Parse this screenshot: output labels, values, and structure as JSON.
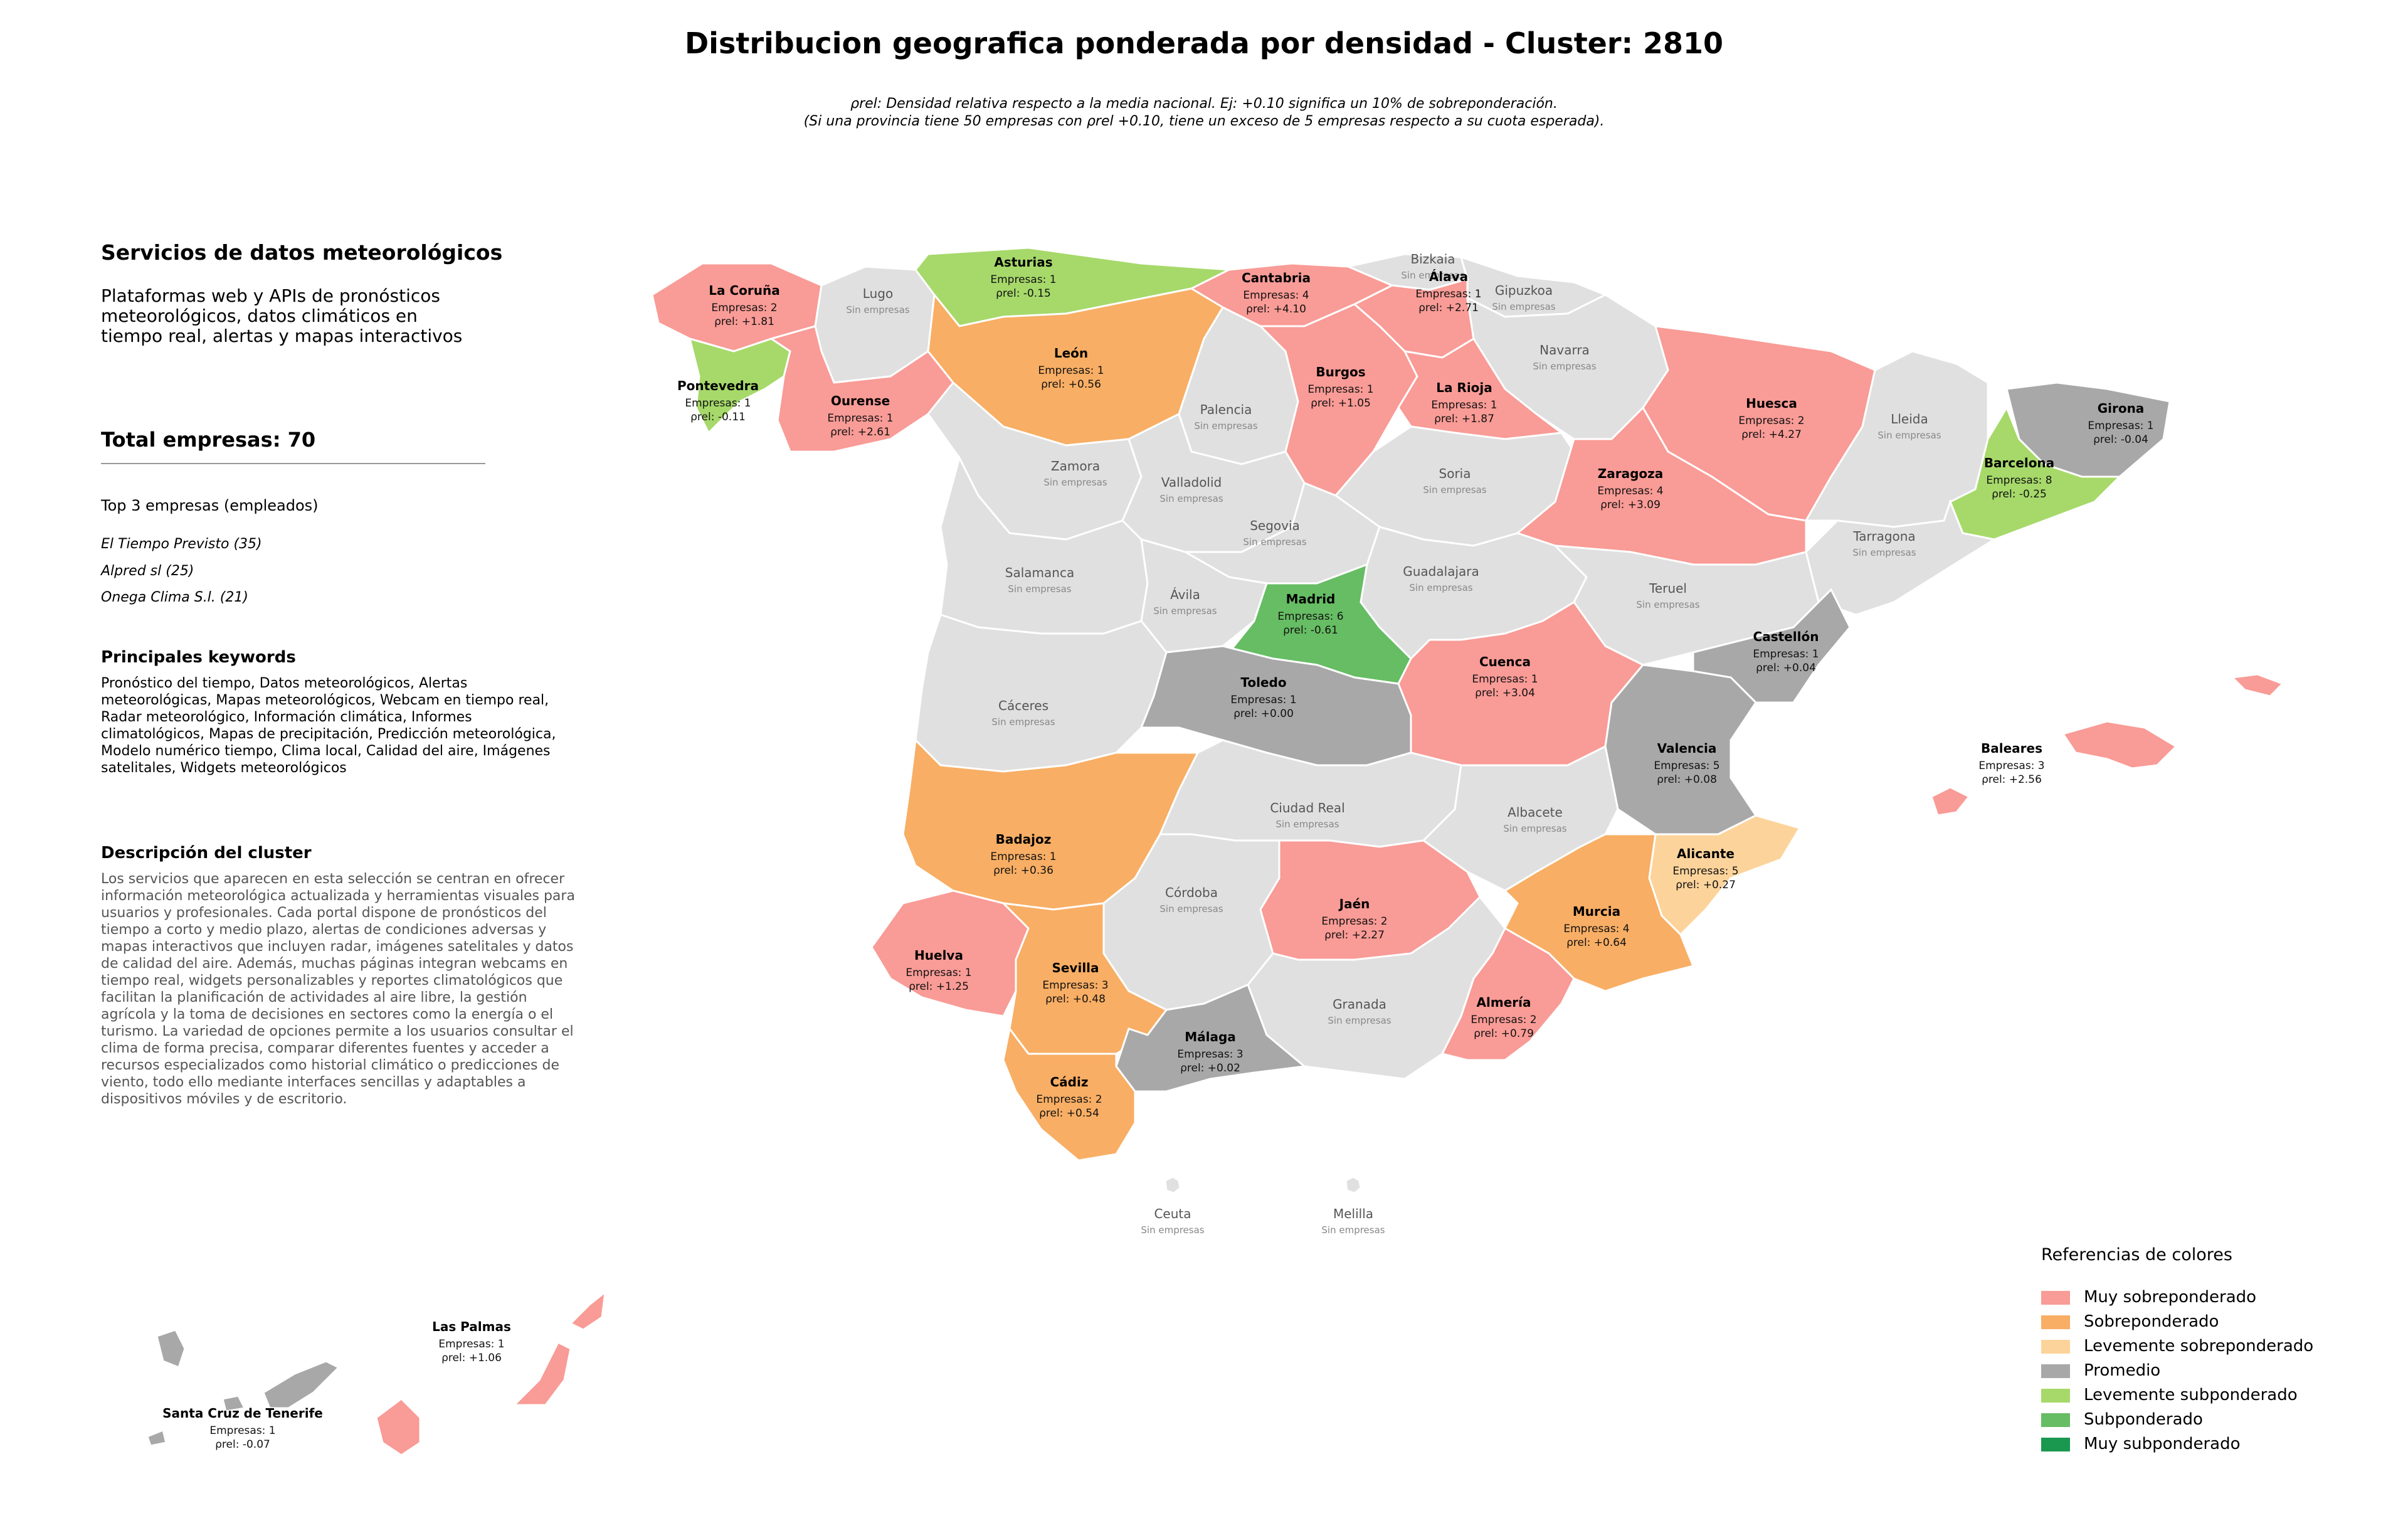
{
  "title": "Distribucion geografica ponderada por densidad - Cluster: 2810",
  "subtitle_line1": "ρrel: Densidad relativa respecto a la media nacional. Ej: +0.10 significa un 10% de sobreponderación.",
  "subtitle_line2": "(Si una provincia tiene 50 empresas con ρrel +0.10, tiene un exceso de 5 empresas respecto a su cuota esperada).",
  "panel": {
    "title": "Servicios de datos meteorológicos",
    "description": "Plataformas web y APIs de pronósticos meteorológicos, datos climáticos en tiempo real, alertas y mapas interactivos",
    "total": "Total empresas: 70",
    "top3_heading": "Top 3 empresas (empleados)",
    "top3": [
      "El Tiempo Previsto (35)",
      "Alpred sl (25)",
      "Onega Clima S.l. (21)"
    ],
    "keywords_heading": "Principales keywords",
    "keywords": "Pronóstico del tiempo, Datos meteorológicos, Alertas meteorológicas, Mapas meteorológicos, Webcam en tiempo real, Radar meteorológico, Información climática, Informes climatológicos, Mapas de precipitación, Predicción meteorológica, Modelo numérico tiempo, Clima local, Calidad del aire, Imágenes satelitales, Widgets meteorológicos",
    "cluster_desc_heading": "Descripción del cluster",
    "cluster_desc": "Los servicios que aparecen en esta selección se centran en ofrecer información meteorológica actualizada y herramientas visuales para usuarios y profesionales. Cada portal dispone de pronósticos del tiempo a corto y medio plazo, alertas de condiciones adversas y mapas interactivos que incluyen radar, imágenes satelitales y datos de calidad del aire. Además, muchas páginas integran webcams en tiempo real, widgets personalizables y reportes climatológicos que facilitan la planificación de actividades al aire libre, la gestión agrícola y la toma de decisiones en sectores como la energía o el turismo. La variedad de opciones permite a los usuarios consultar el clima de forma precisa, comparar diferentes fuentes y acceder a recursos especializados como historial climático o predicciones de viento, todo ello mediante interfaces sencillas y adaptables a dispositivos móviles y de escritorio."
  },
  "no_companies_label": "Sin empresas",
  "companies_prefix": "Empresas: ",
  "rho_prefix": "ρrel: ",
  "legend": {
    "title": "Referencias de colores",
    "items": [
      {
        "label": "Muy sobreponderado",
        "color": "#f99b96"
      },
      {
        "label": "Sobreponderado",
        "color": "#f8ae64"
      },
      {
        "label": "Levemente sobreponderado",
        "color": "#fcd49b"
      },
      {
        "label": "Promedio",
        "color": "#a8a8a8"
      },
      {
        "label": "Levemente subponderado",
        "color": "#a6d96a"
      },
      {
        "label": "Subponderado",
        "color": "#66bd63"
      },
      {
        "label": "Muy subponderado",
        "color": "#1a9850"
      }
    ]
  },
  "provinces": [
    {
      "name": "La Coruña",
      "companies": 2,
      "rho": "+1.81",
      "category": "Muy sobreponderado"
    },
    {
      "name": "Lugo",
      "companies": 0,
      "rho": null,
      "category": null
    },
    {
      "name": "Asturias",
      "companies": 1,
      "rho": "-0.15",
      "category": "Levemente subponderado"
    },
    {
      "name": "Cantabria",
      "companies": 4,
      "rho": "+4.10",
      "category": "Muy sobreponderado"
    },
    {
      "name": "Bizkaia",
      "companies": 0,
      "rho": null,
      "category": null
    },
    {
      "name": "Gipuzkoa",
      "companies": 0,
      "rho": null,
      "category": null
    },
    {
      "name": "Álava",
      "companies": 1,
      "rho": "+2.71",
      "category": "Muy sobreponderado"
    },
    {
      "name": "Navarra",
      "companies": 0,
      "rho": null,
      "category": null
    },
    {
      "name": "Pontevedra",
      "companies": 1,
      "rho": "-0.11",
      "category": "Levemente subponderado"
    },
    {
      "name": "Ourense",
      "companies": 1,
      "rho": "+2.61",
      "category": "Muy sobreponderado"
    },
    {
      "name": "León",
      "companies": 1,
      "rho": "+0.56",
      "category": "Sobreponderado"
    },
    {
      "name": "Palencia",
      "companies": 0,
      "rho": null,
      "category": null
    },
    {
      "name": "Burgos",
      "companies": 1,
      "rho": "+1.05",
      "category": "Muy sobreponderado"
    },
    {
      "name": "La Rioja",
      "companies": 1,
      "rho": "+1.87",
      "category": "Muy sobreponderado"
    },
    {
      "name": "Huesca",
      "companies": 2,
      "rho": "+4.27",
      "category": "Muy sobreponderado"
    },
    {
      "name": "Lleida",
      "companies": 0,
      "rho": null,
      "category": null
    },
    {
      "name": "Girona",
      "companies": 1,
      "rho": "-0.04",
      "category": "Promedio"
    },
    {
      "name": "Barcelona",
      "companies": 8,
      "rho": "-0.25",
      "category": "Levemente subponderado"
    },
    {
      "name": "Zamora",
      "companies": 0,
      "rho": null,
      "category": null
    },
    {
      "name": "Valladolid",
      "companies": 0,
      "rho": null,
      "category": null
    },
    {
      "name": "Soria",
      "companies": 0,
      "rho": null,
      "category": null
    },
    {
      "name": "Zaragoza",
      "companies": 4,
      "rho": "+3.09",
      "category": "Muy sobreponderado"
    },
    {
      "name": "Tarragona",
      "companies": 0,
      "rho": null,
      "category": null
    },
    {
      "name": "Salamanca",
      "companies": 0,
      "rho": null,
      "category": null
    },
    {
      "name": "Segovia",
      "companies": 0,
      "rho": null,
      "category": null
    },
    {
      "name": "Ávila",
      "companies": 0,
      "rho": null,
      "category": null
    },
    {
      "name": "Madrid",
      "companies": 6,
      "rho": "-0.61",
      "category": "Subponderado"
    },
    {
      "name": "Guadalajara",
      "companies": 0,
      "rho": null,
      "category": null
    },
    {
      "name": "Teruel",
      "companies": 0,
      "rho": null,
      "category": null
    },
    {
      "name": "Castellón",
      "companies": 1,
      "rho": "+0.04",
      "category": "Promedio"
    },
    {
      "name": "Cáceres",
      "companies": 0,
      "rho": null,
      "category": null
    },
    {
      "name": "Toledo",
      "companies": 1,
      "rho": "+0.00",
      "category": "Promedio"
    },
    {
      "name": "Cuenca",
      "companies": 1,
      "rho": "+3.04",
      "category": "Muy sobreponderado"
    },
    {
      "name": "Valencia",
      "companies": 5,
      "rho": "+0.08",
      "category": "Promedio"
    },
    {
      "name": "Baleares",
      "companies": 3,
      "rho": "+2.56",
      "category": "Muy sobreponderado"
    },
    {
      "name": "Badajoz",
      "companies": 1,
      "rho": "+0.36",
      "category": "Sobreponderado"
    },
    {
      "name": "Ciudad Real",
      "companies": 0,
      "rho": null,
      "category": null
    },
    {
      "name": "Albacete",
      "companies": 0,
      "rho": null,
      "category": null
    },
    {
      "name": "Alicante",
      "companies": 5,
      "rho": "+0.27",
      "category": "Levemente sobreponderado"
    },
    {
      "name": "Córdoba",
      "companies": 0,
      "rho": null,
      "category": null
    },
    {
      "name": "Jaén",
      "companies": 2,
      "rho": "+2.27",
      "category": "Muy sobreponderado"
    },
    {
      "name": "Murcia",
      "companies": 4,
      "rho": "+0.64",
      "category": "Sobreponderado"
    },
    {
      "name": "Huelva",
      "companies": 1,
      "rho": "+1.25",
      "category": "Muy sobreponderado"
    },
    {
      "name": "Sevilla",
      "companies": 3,
      "rho": "+0.48",
      "category": "Sobreponderado"
    },
    {
      "name": "Granada",
      "companies": 0,
      "rho": null,
      "category": null
    },
    {
      "name": "Almería",
      "companies": 2,
      "rho": "+0.79",
      "category": "Muy sobreponderado"
    },
    {
      "name": "Málaga",
      "companies": 3,
      "rho": "+0.02",
      "category": "Promedio"
    },
    {
      "name": "Cádiz",
      "companies": 2,
      "rho": "+0.54",
      "category": "Sobreponderado"
    },
    {
      "name": "Ceuta",
      "companies": 0,
      "rho": null,
      "category": null
    },
    {
      "name": "Melilla",
      "companies": 0,
      "rho": null,
      "category": null
    },
    {
      "name": "Las Palmas",
      "companies": 1,
      "rho": "+1.06",
      "category": "Muy sobreponderado"
    },
    {
      "name": "Santa Cruz de Tenerife",
      "companies": 1,
      "rho": "-0.07",
      "category": "Promedio"
    }
  ]
}
